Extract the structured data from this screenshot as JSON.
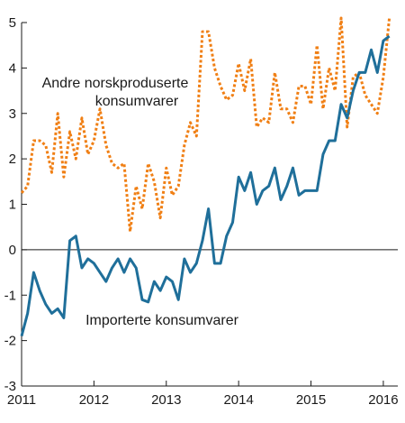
{
  "chart_data": {
    "type": "line",
    "title": "",
    "xlabel": "",
    "ylabel": "",
    "xlim": [
      2011.0,
      2016.2
    ],
    "ylim": [
      -3,
      5
    ],
    "y_ticks": [
      -3,
      -2,
      -1,
      0,
      1,
      2,
      3,
      4,
      5
    ],
    "x_ticks": [
      2011,
      2012,
      2013,
      2014,
      2015,
      2016
    ],
    "grid": "horizontal at zero only",
    "legend": "inline labels",
    "colors": {
      "imported": "#1f6f9a",
      "domestic": "#f07f14"
    },
    "series": [
      {
        "name": "Andre norskproduserte konsumvarer",
        "style": "dotted",
        "color": "#f07f14",
        "x": [
          2011.0,
          2011.083,
          2011.167,
          2011.25,
          2011.333,
          2011.417,
          2011.5,
          2011.583,
          2011.667,
          2011.75,
          2011.833,
          2011.917,
          2012.0,
          2012.083,
          2012.167,
          2012.25,
          2012.333,
          2012.417,
          2012.5,
          2012.583,
          2012.667,
          2012.75,
          2012.833,
          2012.917,
          2013.0,
          2013.083,
          2013.167,
          2013.25,
          2013.333,
          2013.417,
          2013.5,
          2013.583,
          2013.667,
          2013.75,
          2013.833,
          2013.917,
          2014.0,
          2014.083,
          2014.167,
          2014.25,
          2014.333,
          2014.417,
          2014.5,
          2014.583,
          2014.667,
          2014.75,
          2014.833,
          2014.917,
          2015.0,
          2015.083,
          2015.167,
          2015.25,
          2015.333,
          2015.417,
          2015.5,
          2015.583,
          2015.667,
          2015.75,
          2015.833,
          2015.917,
          2016.0,
          2016.083
        ],
        "values": [
          1.25,
          1.4,
          2.4,
          2.4,
          2.3,
          1.7,
          3.0,
          1.6,
          2.6,
          2.0,
          2.9,
          2.1,
          2.4,
          3.1,
          2.3,
          1.9,
          1.8,
          1.9,
          0.4,
          1.4,
          0.9,
          1.9,
          1.5,
          0.7,
          1.8,
          1.2,
          1.4,
          2.3,
          2.8,
          2.5,
          4.8,
          4.8,
          4.0,
          3.6,
          3.3,
          3.4,
          4.1,
          3.5,
          4.2,
          2.7,
          2.9,
          2.8,
          3.9,
          3.1,
          3.1,
          2.8,
          3.6,
          3.6,
          3.2,
          4.5,
          3.1,
          4.0,
          3.5,
          5.1,
          2.7,
          3.8,
          3.9,
          3.4,
          3.2,
          3.0,
          3.8,
          5.1
        ]
      },
      {
        "name": "Importerte konsumvarer",
        "style": "solid",
        "color": "#1f6f9a",
        "x": [
          2011.0,
          2011.083,
          2011.167,
          2011.25,
          2011.333,
          2011.417,
          2011.5,
          2011.583,
          2011.667,
          2011.75,
          2011.833,
          2011.917,
          2012.0,
          2012.083,
          2012.167,
          2012.25,
          2012.333,
          2012.417,
          2012.5,
          2012.583,
          2012.667,
          2012.75,
          2012.833,
          2012.917,
          2013.0,
          2013.083,
          2013.167,
          2013.25,
          2013.333,
          2013.417,
          2013.5,
          2013.583,
          2013.667,
          2013.75,
          2013.833,
          2013.917,
          2014.0,
          2014.083,
          2014.167,
          2014.25,
          2014.333,
          2014.417,
          2014.5,
          2014.583,
          2014.667,
          2014.75,
          2014.833,
          2014.917,
          2015.0,
          2015.083,
          2015.167,
          2015.25,
          2015.333,
          2015.417,
          2015.5,
          2015.583,
          2015.667,
          2015.75,
          2015.833,
          2015.917,
          2016.0,
          2016.083
        ],
        "values": [
          -1.9,
          -1.4,
          -0.5,
          -0.9,
          -1.2,
          -1.4,
          -1.3,
          -1.5,
          0.2,
          0.3,
          -0.4,
          -0.2,
          -0.3,
          -0.5,
          -0.7,
          -0.4,
          -0.2,
          -0.5,
          -0.2,
          -0.4,
          -1.1,
          -1.15,
          -0.7,
          -0.9,
          -0.6,
          -0.7,
          -1.1,
          -0.2,
          -0.5,
          -0.3,
          0.2,
          0.9,
          -0.3,
          -0.3,
          0.3,
          0.6,
          1.6,
          1.3,
          1.7,
          1.0,
          1.3,
          1.4,
          1.8,
          1.1,
          1.4,
          1.8,
          1.2,
          1.3,
          1.3,
          1.3,
          2.1,
          2.4,
          2.4,
          3.2,
          2.9,
          3.5,
          3.9,
          3.9,
          4.4,
          3.9,
          4.6,
          4.7
        ]
      }
    ],
    "labels": {
      "domestic_line1": "Andre norskproduserte",
      "domestic_line2": "konsumvarer",
      "imported": "Importerte konsumvarer"
    }
  }
}
